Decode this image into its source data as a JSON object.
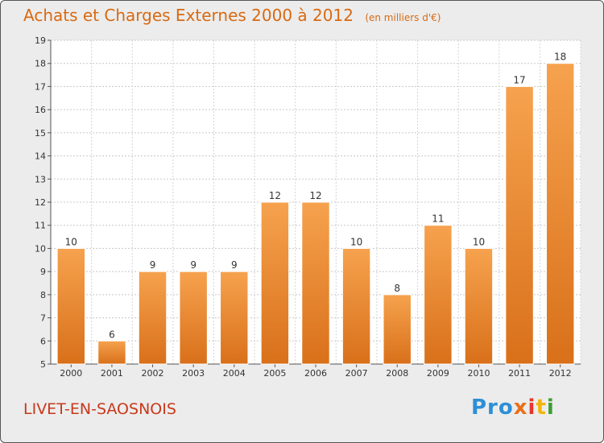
{
  "header": {
    "title": "Achats et Charges Externes 2000 à 2012",
    "unit": "(en milliers d'€)"
  },
  "footer": {
    "city": "LIVET-EN-SAOSNOIS",
    "logo": [
      "Pro",
      "x",
      "i",
      "t",
      "i"
    ]
  },
  "colors": {
    "title": "#d86a12",
    "city": "#c8391c",
    "bar_top": "#f6a24e",
    "bar_bottom": "#d9701a",
    "background": "#ececec"
  },
  "chart_data": {
    "type": "bar",
    "title": "Achats et Charges Externes 2000 à 2012",
    "subtitle": "(en milliers d'€)",
    "categories": [
      "2000",
      "2001",
      "2002",
      "2003",
      "2004",
      "2005",
      "2006",
      "2007",
      "2008",
      "2009",
      "2010",
      "2011",
      "2012"
    ],
    "values": [
      10,
      6,
      9,
      9,
      9,
      12,
      12,
      10,
      8,
      11,
      10,
      17,
      18
    ],
    "ylim": [
      5,
      19
    ],
    "yticks": [
      5,
      6,
      7,
      8,
      9,
      10,
      11,
      12,
      13,
      14,
      15,
      16,
      17,
      18,
      19
    ],
    "grid": true,
    "data_labels": true
  }
}
